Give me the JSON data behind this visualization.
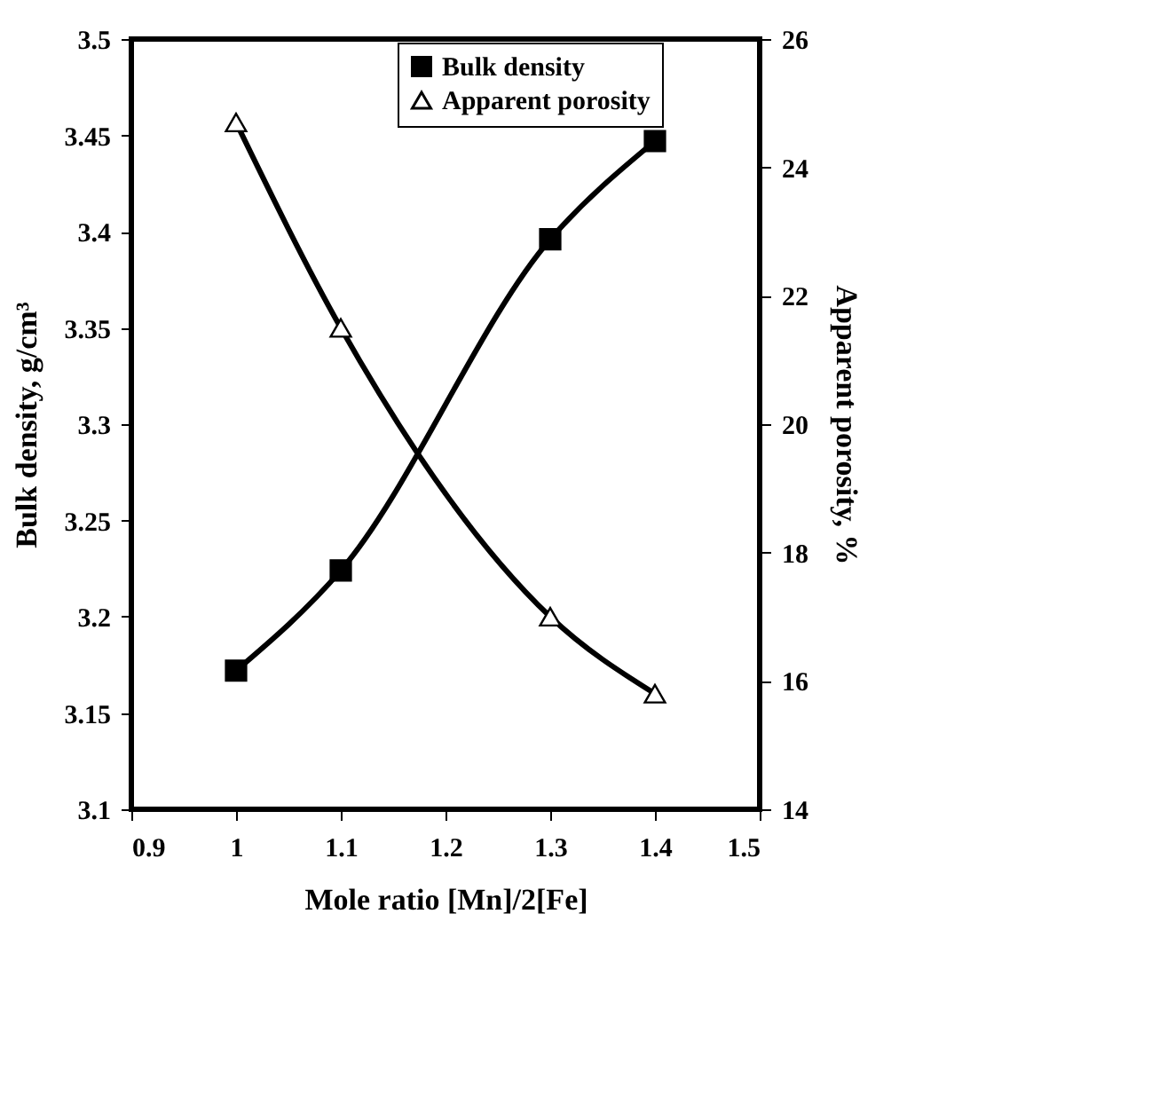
{
  "chart_data": {
    "type": "line",
    "xlabel": "Mole ratio [Mn]/2[Fe]",
    "ylabel": "Bulk density, g/cm³",
    "y2label": "Apparent porosity, %",
    "x": [
      1,
      1.1,
      1.3,
      1.4
    ],
    "series": [
      {
        "name": "Bulk density",
        "color": "#000000",
        "marker": "square",
        "values": [
          3.172,
          3.224,
          3.396,
          3.447
        ]
      },
      {
        "name": "Apparent porosity",
        "color": "#000000",
        "marker": "triangle",
        "axis": "y2",
        "values": [
          24.7,
          21.5,
          17.0,
          15.8
        ]
      }
    ],
    "xlim": [
      0.9,
      1.5
    ],
    "xticks": [
      0.9,
      1,
      1.1,
      1.2,
      1.3,
      1.4,
      1.5
    ],
    "ylim": [
      3.1,
      3.5
    ],
    "yticks": [
      3.1,
      3.15,
      3.2,
      3.25,
      3.3,
      3.35,
      3.4,
      3.45,
      3.5
    ],
    "y2lim": [
      14,
      26
    ],
    "y2ticks": [
      14,
      16,
      18,
      20,
      22,
      24,
      26
    ],
    "legend": "top",
    "grid": false
  }
}
